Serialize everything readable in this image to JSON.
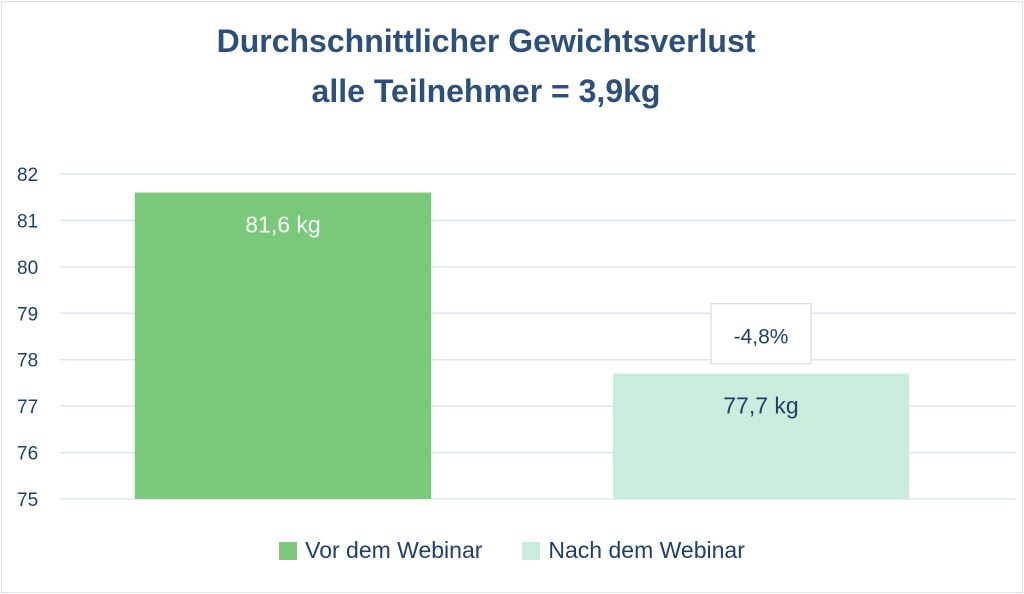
{
  "title_line1": "Durchschnittlicher Gewichtsverlust",
  "title_line2": "alle Teilnehmer = 3,9kg",
  "colors": {
    "bar_before": "#7ac97a",
    "bar_after": "#c9ecdd",
    "title": "#2d4f7c",
    "axis_text": "#1f3f68",
    "grid": "#d6e2ee"
  },
  "chart_data": {
    "type": "bar",
    "title": "Durchschnittlicher Gewichtsverlust alle Teilnehmer = 3,9kg",
    "categories": [
      "Vor dem Webinar",
      "Nach dem Webinar"
    ],
    "values": [
      81.6,
      77.7
    ],
    "data_labels": [
      "81,6 kg",
      "77,7 kg"
    ],
    "annotation": "-4,8%",
    "yticks": [
      75,
      76,
      77,
      78,
      79,
      80,
      81,
      82
    ],
    "ylim": [
      75,
      82
    ],
    "grid": true,
    "legend": "bottom-center",
    "xlabel": "",
    "ylabel": ""
  }
}
